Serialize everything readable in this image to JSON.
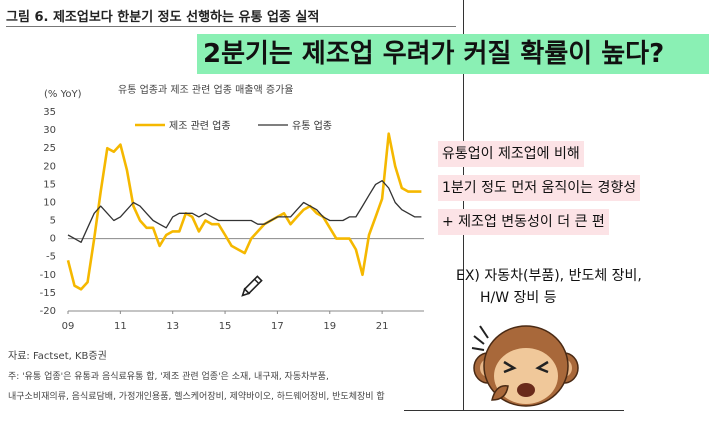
{
  "figure": {
    "title": "그림 6. 제조업보다 한분기 정도 선행하는 유통 업종 실적",
    "unit": "(% YoY)",
    "chart_title": "유통 업종과 제조 관련 업종 매출액 증가율",
    "source": "자료: Factset, KB증권",
    "note_lines": [
      "주: '유통 업종'은 유통과 음식료유통 합, '제조 관련 업종'은 소재, 내구재, 자동차부품,",
      "내구소비재의류, 음식료담배, 가정개인용품, 헬스케어장비, 제약바이오, 하드웨어장비, 반도체장비 합"
    ]
  },
  "headline": "2분기는 제조업 우려가 커질 확률이 높다?",
  "highlights": [
    "유통업이 제조업에 비해",
    "1분기 정도 먼저 움직이는 경향성",
    "+ 제조업 변동성이 더 큰 편"
  ],
  "examples": [
    "EX) 자동차(부품), 반도체 장비,",
    "H/W 장비 등"
  ],
  "colors": {
    "series_manufacturing": "#f5b800",
    "series_retail": "#333333",
    "headline_bg": "#8af0b4",
    "highlight_bg": "#fce3e6"
  },
  "icons": [
    "pencil-cursor-icon",
    "monkey-mascot-icon"
  ],
  "chart_data": {
    "type": "line",
    "xlabel": "",
    "ylabel": "(% YoY)",
    "ylim": [
      -20,
      35
    ],
    "yticks": [
      35,
      30,
      25,
      20,
      15,
      10,
      5,
      0,
      -5,
      -10,
      -15,
      -20
    ],
    "xticks": [
      "09",
      "11",
      "13",
      "15",
      "17",
      "19",
      "21"
    ],
    "legend_position": "top",
    "x": [
      2009.0,
      2009.25,
      2009.5,
      2009.75,
      2010.0,
      2010.25,
      2010.5,
      2010.75,
      2011.0,
      2011.25,
      2011.5,
      2011.75,
      2012.0,
      2012.25,
      2012.5,
      2012.75,
      2013.0,
      2013.25,
      2013.5,
      2013.75,
      2014.0,
      2014.25,
      2014.5,
      2014.75,
      2015.0,
      2015.25,
      2015.5,
      2015.75,
      2016.0,
      2016.25,
      2016.5,
      2016.75,
      2017.0,
      2017.25,
      2017.5,
      2017.75,
      2018.0,
      2018.25,
      2018.5,
      2018.75,
      2019.0,
      2019.25,
      2019.5,
      2019.75,
      2020.0,
      2020.25,
      2020.5,
      2020.75,
      2021.0,
      2021.25,
      2021.5,
      2021.75,
      2022.0,
      2022.25,
      2022.5
    ],
    "series": [
      {
        "name": "제조 관련 업종",
        "values": [
          -6,
          -13,
          -14,
          -12,
          0,
          13,
          25,
          24,
          26,
          19,
          9,
          5,
          3,
          3,
          -2,
          1,
          2,
          2,
          7,
          6,
          2,
          5,
          4,
          4,
          1,
          -2,
          -3,
          -4,
          0,
          2,
          4,
          5,
          6,
          7,
          4,
          6,
          8,
          9,
          7,
          6,
          3,
          0,
          0,
          0,
          -3,
          -10,
          1,
          6,
          11,
          29,
          20,
          14,
          13,
          13,
          13
        ]
      },
      {
        "name": "유통 업종",
        "values": [
          1,
          0,
          -1,
          3,
          7,
          9,
          7,
          5,
          6,
          8,
          10,
          9,
          7,
          5,
          4,
          3,
          6,
          7,
          7,
          7,
          6,
          7,
          6,
          5,
          5,
          5,
          5,
          5,
          5,
          4,
          4,
          5,
          6,
          6,
          6,
          8,
          10,
          9,
          8,
          6,
          5,
          5,
          5,
          6,
          6,
          9,
          12,
          15,
          16,
          14,
          10,
          8,
          7,
          6,
          6
        ]
      }
    ]
  }
}
